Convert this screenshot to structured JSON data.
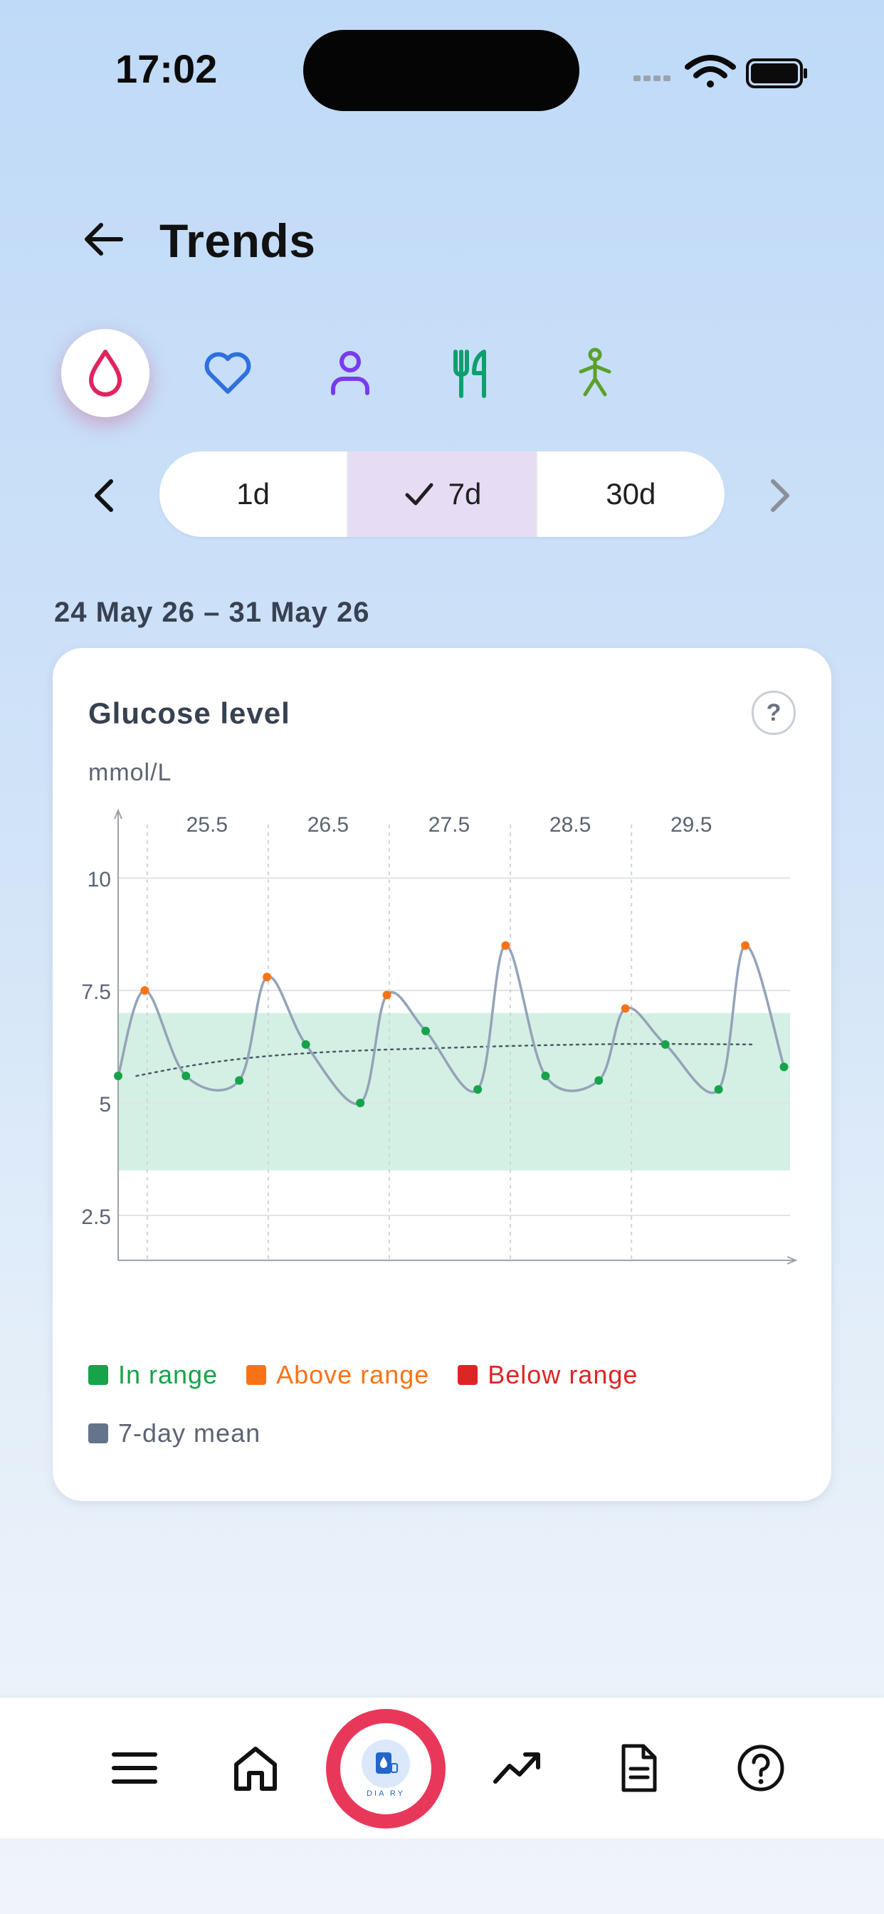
{
  "status": {
    "time": "17:02"
  },
  "header": {
    "title": "Trends",
    "back_icon": "arrow-left-icon"
  },
  "categories": [
    {
      "name": "glucose",
      "icon": "blood-drop-icon",
      "color": "#e0245e",
      "active": true
    },
    {
      "name": "heart",
      "icon": "heart-icon",
      "color": "#2f6fde",
      "active": false
    },
    {
      "name": "profile",
      "icon": "person-icon",
      "color": "#7c3aed",
      "active": false
    },
    {
      "name": "food",
      "icon": "fork-knife-icon",
      "color": "#0f9f6e",
      "active": false
    },
    {
      "name": "activity",
      "icon": "walking-icon",
      "color": "#5aa02c",
      "active": false
    }
  ],
  "period": {
    "options": [
      "1d",
      "7d",
      "30d"
    ],
    "selected": "7d",
    "range_label": "24 May 26 – 31 May 26"
  },
  "card": {
    "title": "Glucose level",
    "help_label": "?",
    "unit": "mmol/L"
  },
  "chart_data": {
    "type": "line",
    "title": "Glucose level",
    "ylabel": "mmol/L",
    "x_ticks": [
      "25.5",
      "26.5",
      "27.5",
      "28.5",
      "29.5"
    ],
    "y_ticks": [
      "10",
      "7.5",
      "5",
      "2.5"
    ],
    "xlim": [
      24.85,
      30.4
    ],
    "ylim": [
      1.5,
      11
    ],
    "target_range": [
      3.5,
      7
    ],
    "grid": true,
    "legend_placement": "bottom",
    "series": [
      {
        "name": "readings",
        "x": [
          24.85,
          25.07,
          25.41,
          25.85,
          26.08,
          26.4,
          26.85,
          27.07,
          27.39,
          27.82,
          28.05,
          28.38,
          28.82,
          29.04,
          29.37,
          29.81,
          30.03,
          30.35
        ],
        "y": [
          5.6,
          7.5,
          5.6,
          5.5,
          7.8,
          6.3,
          5.0,
          7.4,
          6.6,
          5.3,
          8.5,
          5.6,
          5.5,
          7.1,
          6.3,
          5.3,
          8.5,
          5.8
        ]
      },
      {
        "name": "7-day mean",
        "x": [
          25.0,
          25.5,
          26.0,
          26.5,
          27.0,
          27.5,
          28.0,
          28.5,
          29.0,
          29.5,
          30.1
        ],
        "y": [
          5.6,
          5.85,
          6.02,
          6.12,
          6.18,
          6.22,
          6.26,
          6.29,
          6.31,
          6.31,
          6.3
        ]
      }
    ],
    "legend": [
      {
        "label": "In range",
        "color": "#16a34a"
      },
      {
        "label": "Above range",
        "color": "#f97316"
      },
      {
        "label": "Below range",
        "color": "#dc2626"
      },
      {
        "label": "7-day mean",
        "color": "#64748b"
      }
    ],
    "colors": {
      "band": "#d4f0e4",
      "line": "#94a3b8",
      "mean": "#4b5b6b"
    }
  },
  "nav": [
    {
      "name": "menu",
      "icon": "hamburger-menu-icon"
    },
    {
      "name": "home",
      "icon": "home-icon"
    },
    {
      "name": "diary",
      "icon": "diary-logo-icon",
      "label": "DIA RY"
    },
    {
      "name": "trends",
      "icon": "trending-up-icon"
    },
    {
      "name": "report",
      "icon": "document-icon"
    },
    {
      "name": "help",
      "icon": "help-circle-icon"
    }
  ]
}
